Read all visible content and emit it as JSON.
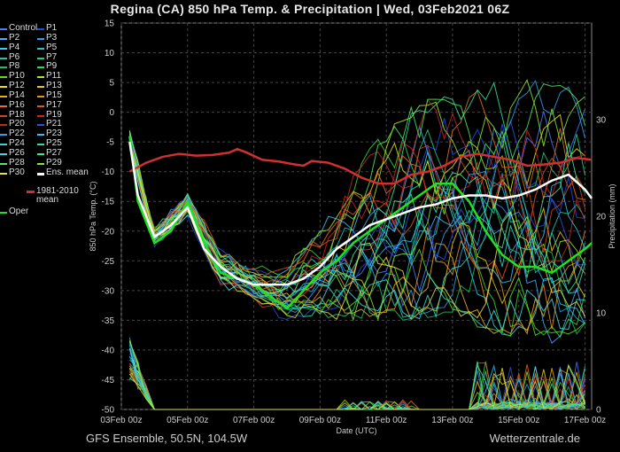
{
  "title": "Regina  (CA)  850 hPa Temp. & Precipitation | Wed, 03Feb2021 06Z",
  "footer": {
    "left": "GFS Ensemble, 50.5N, 104.5W",
    "right": "Wetterzentrale.de"
  },
  "legend": {
    "members": [
      {
        "label": "Control",
        "color": "#4b78ff"
      },
      {
        "label": "P1",
        "color": "#1e50dc"
      },
      {
        "label": "P2",
        "color": "#4aa8ff"
      },
      {
        "label": "P3",
        "color": "#2aa0f0"
      },
      {
        "label": "P4",
        "color": "#2fd0f0"
      },
      {
        "label": "P5",
        "color": "#22c8c8"
      },
      {
        "label": "P6",
        "color": "#1ec8a0"
      },
      {
        "label": "P7",
        "color": "#20d080"
      },
      {
        "label": "P8",
        "color": "#20c060"
      },
      {
        "label": "P9",
        "color": "#38d838"
      },
      {
        "label": "P10",
        "color": "#58e020"
      },
      {
        "label": "P11",
        "color": "#b0e820"
      },
      {
        "label": "P12",
        "color": "#e8e020"
      },
      {
        "label": "P13",
        "color": "#e8c820"
      },
      {
        "label": "P14",
        "color": "#e8b020"
      },
      {
        "label": "P15",
        "color": "#e89020"
      },
      {
        "label": "P16",
        "color": "#e87020"
      },
      {
        "label": "P17",
        "color": "#e05820"
      },
      {
        "label": "P18",
        "color": "#d84020"
      },
      {
        "label": "P19",
        "color": "#d82020"
      },
      {
        "label": "P20",
        "color": "#c02828"
      },
      {
        "label": "P21",
        "color": "#3050e0"
      },
      {
        "label": "P22",
        "color": "#30a0f0"
      },
      {
        "label": "P23",
        "color": "#38c0f0"
      },
      {
        "label": "P24",
        "color": "#30d8c8"
      },
      {
        "label": "P25",
        "color": "#30e0a0"
      },
      {
        "label": "P26",
        "color": "#40d8e0"
      },
      {
        "label": "P27",
        "color": "#40e890"
      },
      {
        "label": "P28",
        "color": "#50e860"
      },
      {
        "label": "P29",
        "color": "#88e830"
      },
      {
        "label": "P30",
        "color": "#e8e040"
      }
    ],
    "ens_mean": {
      "label": "Ens. mean",
      "color": "#ffffff"
    },
    "climate_mean": {
      "label": "1981-2010\nmean",
      "color": "#d03030"
    },
    "oper": {
      "label": "Oper",
      "color": "#22e022"
    }
  },
  "chart_data": {
    "type": "line",
    "ylabel_left": "850 hPa Temp. (°C)",
    "ylabel_right": "Precipitation (mm)",
    "xlabel": "Date (UTC)",
    "x_range_days": [
      0,
      14.2
    ],
    "x_ticks": [
      {
        "day": 0,
        "label": "03Feb 00z"
      },
      {
        "day": 2,
        "label": "05Feb 00z"
      },
      {
        "day": 4,
        "label": "07Feb 00z"
      },
      {
        "day": 6,
        "label": "09Feb 00z"
      },
      {
        "day": 8,
        "label": "11Feb 00z"
      },
      {
        "day": 10,
        "label": "13Feb 00z"
      },
      {
        "day": 12,
        "label": "15Feb 00z"
      },
      {
        "day": 14,
        "label": "17Feb 00z"
      }
    ],
    "ylim_left": [
      -50,
      15
    ],
    "y_ticks_left": [
      15,
      10,
      5,
      0,
      -5,
      -10,
      -15,
      -20,
      -25,
      -30,
      -35,
      -40,
      -45,
      -50
    ],
    "ylim_right": [
      0,
      40
    ],
    "y_ticks_right": [
      0,
      10,
      20,
      30
    ],
    "grid": true,
    "ens_mean": {
      "x": [
        0.25,
        0.5,
        1,
        1.5,
        2,
        2.5,
        3,
        3.5,
        4,
        4.5,
        5,
        5.5,
        6,
        6.5,
        7,
        7.5,
        8,
        8.5,
        9,
        9.5,
        10,
        10.5,
        11,
        11.5,
        12,
        12.5,
        13,
        13.5,
        14,
        14.2
      ],
      "y": [
        -5,
        -14,
        -21,
        -19,
        -16,
        -23,
        -26,
        -28,
        -29,
        -29,
        -29,
        -28,
        -26,
        -23,
        -21,
        -19,
        -18,
        -17,
        -16,
        -15.5,
        -14.5,
        -14,
        -14,
        -14.5,
        -14,
        -13,
        -11.5,
        -10.5,
        -13,
        -14.5
      ]
    },
    "climate_mean": {
      "x": [
        0.25,
        0.75,
        1.25,
        1.75,
        2.25,
        2.75,
        3.25,
        3.5,
        3.75,
        4.25,
        4.75,
        5.25,
        5.5,
        5.75,
        6.25,
        6.75,
        7.25,
        7.75,
        8.25,
        8.75,
        9.25,
        9.75,
        10.25,
        10.75,
        11.25,
        11.75,
        12.25,
        12.75,
        13.25,
        13.75,
        14.2
      ],
      "y": [
        -10,
        -8.5,
        -7.5,
        -7,
        -7.3,
        -7.2,
        -6.8,
        -6.2,
        -6.7,
        -8,
        -8.3,
        -8.8,
        -9,
        -8.2,
        -8.5,
        -9.5,
        -11,
        -12,
        -12,
        -10.5,
        -10,
        -9,
        -7.5,
        -7,
        -7.5,
        -8,
        -9,
        -8.8,
        -8.5,
        -7.7,
        -8
      ]
    },
    "oper": {
      "x": [
        0.25,
        0.5,
        1,
        1.5,
        2,
        2.5,
        3,
        3.5,
        4,
        4.5,
        5,
        5.5,
        6,
        6.5,
        7,
        7.5,
        8,
        8.5,
        9,
        9.5,
        10,
        10.5,
        11,
        11.5,
        12,
        12.5,
        13,
        13.5,
        14,
        14.2
      ],
      "y": [
        -4,
        -15,
        -22,
        -20,
        -15,
        -22,
        -27,
        -28,
        -29,
        -31,
        -33,
        -30,
        -27,
        -25,
        -22,
        -20,
        -18,
        -16,
        -14,
        -12,
        -12,
        -15,
        -20,
        -24,
        -26,
        -26,
        -27,
        -25,
        -23,
        -22
      ]
    },
    "members_envelope": {
      "x": [
        0.25,
        1,
        2,
        3,
        4,
        5,
        6,
        7,
        8,
        9,
        10,
        11,
        12,
        13,
        14
      ],
      "upper": [
        -2,
        -19,
        -13,
        -22,
        -26,
        -26,
        -20,
        -10,
        -4,
        2,
        2,
        4,
        5,
        5,
        2
      ],
      "lower": [
        -7,
        -23,
        -18,
        -30,
        -32,
        -35,
        -34,
        -34,
        -34,
        -34,
        -33,
        -36,
        -37,
        -38,
        -36
      ]
    },
    "precip_note": "Members show light precipitation spikes at start and after day 11"
  }
}
